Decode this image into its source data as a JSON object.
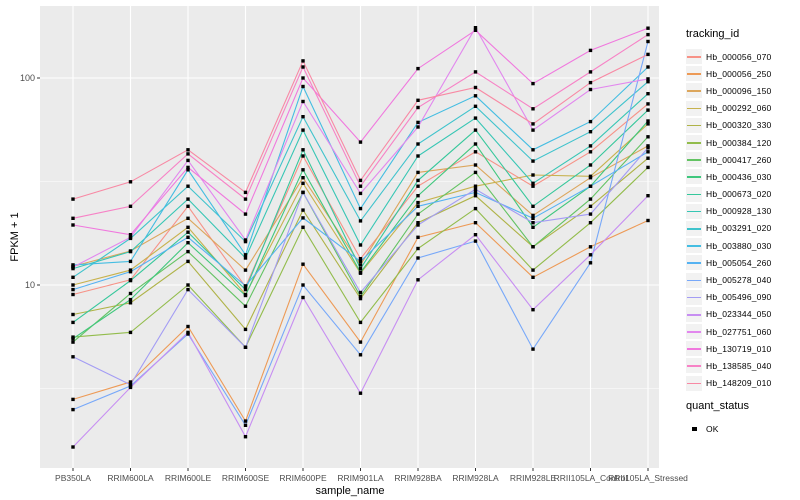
{
  "figure": {
    "panel_bg": "#EBEBEB",
    "grid_color": "#FFFFFF",
    "tick_label_color": "#4D4D4D",
    "marker_color": "#000000"
  },
  "axes": {
    "x_title": "sample_name",
    "y_title": "FPKM + 1"
  },
  "legend": {
    "tracking_title": "tracking_id",
    "quant_title": "quant_status",
    "quant_items": [
      {
        "label": "OK",
        "marker": "black-square"
      }
    ]
  },
  "chart_data": {
    "type": "line",
    "title": "",
    "xlabel": "sample_name",
    "ylabel": "FPKM + 1",
    "y_scale": "log10",
    "ylim": [
      1.3,
      223
    ],
    "y_major_ticks": [
      10,
      100
    ],
    "y_tick_labels": [
      "10",
      "100"
    ],
    "y_minor_ticks": [
      3.162,
      31.62
    ],
    "grid": true,
    "legend_position": "right",
    "marker": "filled-square-black",
    "categories": [
      "PB350LA",
      "RRIM600LA",
      "RRIM600LE",
      "RRIM600SE",
      "RRIM600PE",
      "RRIM901LA",
      "RRIM928BA",
      "RRIM928LA",
      "RRIM928LE",
      "RRII105LA_Control",
      "RRII105LA_Stressed"
    ],
    "series": [
      {
        "name": "Hb_000056_070",
        "color": "#F79287",
        "values": [
          9,
          10.6,
          24,
          9.8,
          42,
          13.4,
          30,
          44,
          30,
          44,
          75
        ]
      },
      {
        "name": "Hb_000056_250",
        "color": "#ED9A56",
        "values": [
          2.8,
          3.4,
          6.3,
          2.2,
          12.6,
          5.3,
          17,
          20,
          10.9,
          15.3,
          20.5
        ]
      },
      {
        "name": "Hb_000096_150",
        "color": "#DCA65C",
        "values": [
          12.3,
          14.6,
          21,
          11.8,
          33,
          12.5,
          35,
          38,
          21.7,
          33,
          47
        ]
      },
      {
        "name": "Hb_000292_060",
        "color": "#C7B24E",
        "values": [
          10,
          11.8,
          19,
          9,
          31,
          11.4,
          25,
          30,
          34,
          33.5,
          60
        ]
      },
      {
        "name": "Hb_000320_330",
        "color": "#AFB348",
        "values": [
          7.2,
          8.2,
          13,
          6.1,
          23,
          8.6,
          20,
          27,
          15.3,
          24,
          41
        ]
      },
      {
        "name": "Hb_000384_120",
        "color": "#92BC4B",
        "values": [
          5.6,
          5.9,
          10,
          5,
          19,
          6.6,
          15,
          23.4,
          11.8,
          20,
          37
        ]
      },
      {
        "name": "Hb_000417_260",
        "color": "#63C363",
        "values": [
          5.3,
          9.1,
          14.5,
          7.9,
          28,
          8.8,
          22,
          35,
          15.3,
          26,
          52
        ]
      },
      {
        "name": "Hb_000436_030",
        "color": "#3FC77D",
        "values": [
          5.5,
          8.5,
          16,
          8.9,
          36,
          11.5,
          27,
          48,
          19,
          30,
          62
        ]
      },
      {
        "name": "Hb_000673_020",
        "color": "#35C79B",
        "values": [
          6.6,
          10.5,
          18,
          9.5,
          45,
          12,
          32,
          56,
          24,
          38,
          70
        ]
      },
      {
        "name": "Hb_000928_130",
        "color": "#36C6B4",
        "values": [
          12,
          14.5,
          26,
          13.5,
          56,
          15.6,
          42,
          64,
          31,
          47,
          84
        ]
      },
      {
        "name": "Hb_003291_020",
        "color": "#3FC3CC",
        "values": [
          10.9,
          16.8,
          30,
          16.2,
          65,
          20.4,
          48,
          73,
          39.7,
          55,
          96
        ]
      },
      {
        "name": "Hb_003880_030",
        "color": "#44BDE2",
        "values": [
          12.5,
          13,
          36,
          14,
          91,
          23.4,
          61,
          82,
          45,
          61.6,
          113
        ]
      },
      {
        "name": "Hb_005054_260",
        "color": "#55B2F2",
        "values": [
          9.5,
          11.6,
          17,
          9.9,
          21.1,
          13,
          24,
          28,
          21,
          30,
          44
        ]
      },
      {
        "name": "Hb_005278_040",
        "color": "#77A8F9",
        "values": [
          2.5,
          3.25,
          5.8,
          2.1,
          10,
          4.6,
          13.5,
          16.3,
          4.9,
          12.8,
          150
        ]
      },
      {
        "name": "Hb_005496_090",
        "color": "#A39CF4",
        "values": [
          4.5,
          3.3,
          9.5,
          5,
          28,
          9.2,
          19.5,
          29,
          20,
          22,
          46
        ]
      },
      {
        "name": "Hb_023344_050",
        "color": "#C78EF2",
        "values": [
          1.65,
          3.2,
          5.9,
          1.85,
          8.7,
          3,
          10.6,
          17.5,
          7.6,
          14,
          27
        ]
      },
      {
        "name": "Hb_027751_060",
        "color": "#E287EE",
        "values": [
          12.2,
          17,
          40,
          16.5,
          77,
          27.7,
          58,
          175,
          56,
          88,
          99
        ]
      },
      {
        "name": "Hb_130719_010",
        "color": "#F078DE",
        "values": [
          19.5,
          17.5,
          37,
          22,
          100,
          49,
          111,
          170,
          94,
          136,
          174
        ]
      },
      {
        "name": "Hb_138585_040",
        "color": "#F782C6",
        "values": [
          21,
          24,
          43,
          26,
          113,
          30,
          72,
          107,
          71,
          107,
          162
        ]
      },
      {
        "name": "Hb_148209_010",
        "color": "#F889A4",
        "values": [
          26,
          31.5,
          45,
          28,
          121,
          32,
          78,
          90,
          60,
          95,
          130
        ]
      }
    ]
  }
}
